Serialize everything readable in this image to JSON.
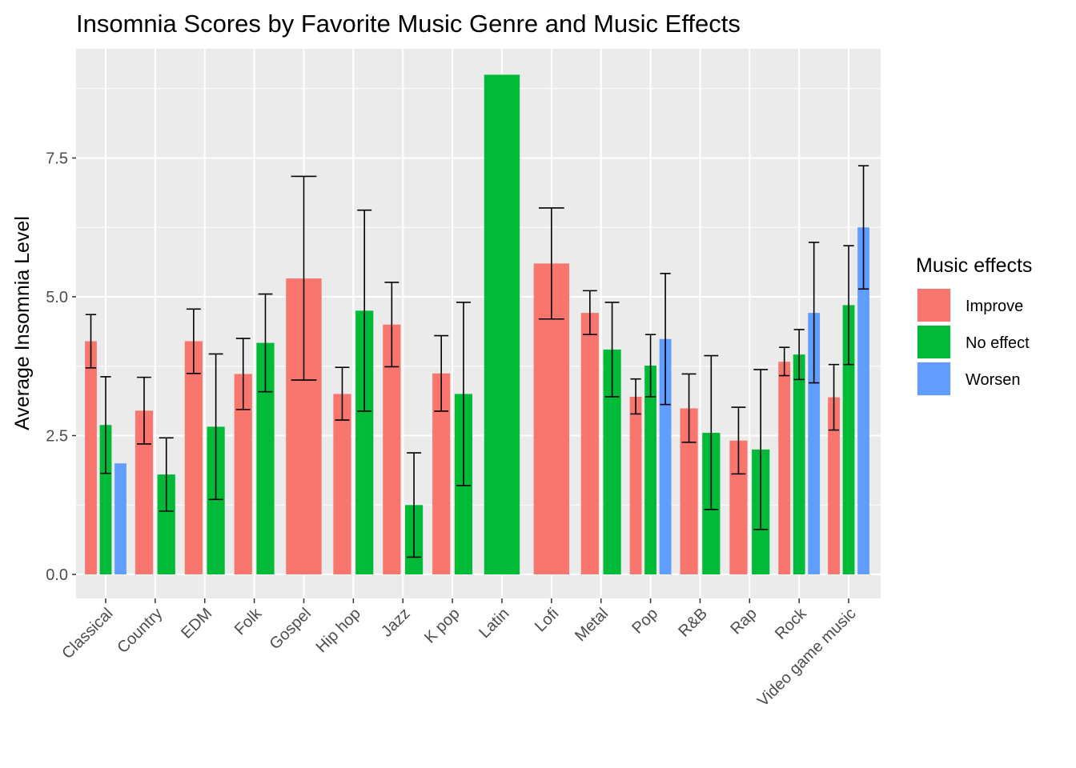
{
  "chart_data": {
    "type": "bar",
    "title": "Insomnia Scores by Favorite Music Genre and Music Effects",
    "xlabel": "",
    "ylabel": "Average Insomnia Level",
    "ylim": [
      -0.45,
      9.5
    ],
    "yticks": [
      0.0,
      2.5,
      5.0,
      7.5
    ],
    "ytick_labels": [
      "0.0",
      "2.5",
      "5.0",
      "7.5"
    ],
    "grid": true,
    "legend_position": "right",
    "legend_title": "Music effects",
    "categories": [
      "Classical",
      "Country",
      "EDM",
      "Folk",
      "Gospel",
      "Hip hop",
      "Jazz",
      "K pop",
      "Latin",
      "Lofi",
      "Metal",
      "Pop",
      "R&B",
      "Rap",
      "Rock",
      "Video game music"
    ],
    "series": [
      {
        "name": "Improve",
        "color": "#F8766D"
      },
      {
        "name": "No effect",
        "color": "#00BA38"
      },
      {
        "name": "Worsen",
        "color": "#619CFF"
      }
    ],
    "groups": [
      {
        "category": "Classical",
        "bars": [
          {
            "series": "Improve",
            "value": 4.2,
            "err_low": 3.72,
            "err_high": 4.68
          },
          {
            "series": "No effect",
            "value": 2.69,
            "err_low": 1.82,
            "err_high": 3.56
          },
          {
            "series": "Worsen",
            "value": 2.0,
            "err_low": null,
            "err_high": null
          }
        ]
      },
      {
        "category": "Country",
        "bars": [
          {
            "series": "Improve",
            "value": 2.95,
            "err_low": 2.35,
            "err_high": 3.55
          },
          {
            "series": "No effect",
            "value": 1.8,
            "err_low": 1.14,
            "err_high": 2.46
          }
        ]
      },
      {
        "category": "EDM",
        "bars": [
          {
            "series": "Improve",
            "value": 4.2,
            "err_low": 3.62,
            "err_high": 4.78
          },
          {
            "series": "No effect",
            "value": 2.66,
            "err_low": 1.35,
            "err_high": 3.97
          }
        ]
      },
      {
        "category": "Folk",
        "bars": [
          {
            "series": "Improve",
            "value": 3.61,
            "err_low": 2.97,
            "err_high": 4.25
          },
          {
            "series": "No effect",
            "value": 4.17,
            "err_low": 3.29,
            "err_high": 5.05
          }
        ]
      },
      {
        "category": "Gospel",
        "bars": [
          {
            "series": "Improve",
            "value": 5.33,
            "err_low": 3.5,
            "err_high": 7.17
          }
        ]
      },
      {
        "category": "Hip hop",
        "bars": [
          {
            "series": "Improve",
            "value": 3.25,
            "err_low": 2.78,
            "err_high": 3.73
          },
          {
            "series": "No effect",
            "value": 4.75,
            "err_low": 2.94,
            "err_high": 6.56
          }
        ]
      },
      {
        "category": "Jazz",
        "bars": [
          {
            "series": "Improve",
            "value": 4.5,
            "err_low": 3.74,
            "err_high": 5.26
          },
          {
            "series": "No effect",
            "value": 1.25,
            "err_low": 0.31,
            "err_high": 2.19
          }
        ]
      },
      {
        "category": "K pop",
        "bars": [
          {
            "series": "Improve",
            "value": 3.62,
            "err_low": 2.94,
            "err_high": 4.3
          },
          {
            "series": "No effect",
            "value": 3.25,
            "err_low": 1.6,
            "err_high": 4.9
          }
        ]
      },
      {
        "category": "Latin",
        "bars": [
          {
            "series": "No effect",
            "value": 9.0,
            "err_low": null,
            "err_high": null
          }
        ]
      },
      {
        "category": "Lofi",
        "bars": [
          {
            "series": "Improve",
            "value": 5.6,
            "err_low": 4.6,
            "err_high": 6.6
          }
        ]
      },
      {
        "category": "Metal",
        "bars": [
          {
            "series": "Improve",
            "value": 4.71,
            "err_low": 4.32,
            "err_high": 5.11
          },
          {
            "series": "No effect",
            "value": 4.05,
            "err_low": 3.2,
            "err_high": 4.9
          }
        ]
      },
      {
        "category": "Pop",
        "bars": [
          {
            "series": "Improve",
            "value": 3.2,
            "err_low": 2.89,
            "err_high": 3.52
          },
          {
            "series": "No effect",
            "value": 3.76,
            "err_low": 3.2,
            "err_high": 4.32
          },
          {
            "series": "Worsen",
            "value": 4.24,
            "err_low": 3.06,
            "err_high": 5.42
          }
        ]
      },
      {
        "category": "R&B",
        "bars": [
          {
            "series": "Improve",
            "value": 2.99,
            "err_low": 2.38,
            "err_high": 3.61
          },
          {
            "series": "No effect",
            "value": 2.55,
            "err_low": 1.17,
            "err_high": 3.94
          }
        ]
      },
      {
        "category": "Rap",
        "bars": [
          {
            "series": "Improve",
            "value": 2.41,
            "err_low": 1.81,
            "err_high": 3.01
          },
          {
            "series": "No effect",
            "value": 2.25,
            "err_low": 0.81,
            "err_high": 3.69
          }
        ]
      },
      {
        "category": "Rock",
        "bars": [
          {
            "series": "Improve",
            "value": 3.83,
            "err_low": 3.58,
            "err_high": 4.09
          },
          {
            "series": "No effect",
            "value": 3.96,
            "err_low": 3.51,
            "err_high": 4.41
          },
          {
            "series": "Worsen",
            "value": 4.71,
            "err_low": 3.45,
            "err_high": 5.98
          }
        ]
      },
      {
        "category": "Video game music",
        "bars": [
          {
            "series": "Improve",
            "value": 3.19,
            "err_low": 2.6,
            "err_high": 3.78
          },
          {
            "series": "No effect",
            "value": 4.85,
            "err_low": 3.78,
            "err_high": 5.92
          },
          {
            "series": "Worsen",
            "value": 6.25,
            "err_low": 5.14,
            "err_high": 7.36
          }
        ]
      }
    ]
  }
}
